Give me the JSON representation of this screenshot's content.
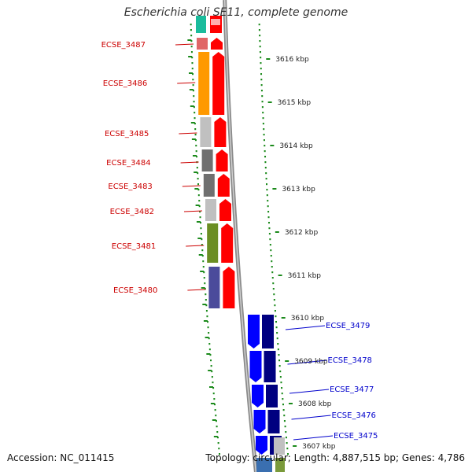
{
  "header": {
    "title": "Escherichia coli SE11, complete genome"
  },
  "footer": {
    "accession": "Accession: NC_011415",
    "summary": "Topology: circular; Length: 4,887,515 bp; Genes: 4,786"
  },
  "colors": {
    "forward_strand": "#ff0000",
    "reverse_strand": "#0000ff",
    "reverse_strand_dark": "#000080",
    "tick_green": "#1b8a1b",
    "backbone": "#8a8a8a"
  },
  "kbp_ticks": [
    "3616 kbp",
    "3615 kbp",
    "3614 kbp",
    "3613 kbp",
    "3612 kbp",
    "3611 kbp",
    "3610 kbp",
    "3609 kbp",
    "3608 kbp",
    "3607 kbp"
  ],
  "forward_genes": [
    {
      "label": "ECSE_3487",
      "cog_color": "#e06666",
      "strand_color": "#ff0000"
    },
    {
      "label": "ECSE_3486",
      "cog_color": "#ff9900",
      "strand_color": "#ff0000"
    },
    {
      "label": "ECSE_3485",
      "cog_color": "#c0c0c0",
      "strand_color": "#ff0000"
    },
    {
      "label": "ECSE_3484",
      "cog_color": "#707070",
      "strand_color": "#ff0000"
    },
    {
      "label": "ECSE_3483",
      "cog_color": "#707070",
      "strand_color": "#ff0000"
    },
    {
      "label": "ECSE_3482",
      "cog_color": "#c0c0c0",
      "strand_color": "#ff0000"
    },
    {
      "label": "ECSE_3481",
      "cog_color": "#6b8e23",
      "strand_color": "#ff0000"
    },
    {
      "label": "ECSE_3480",
      "cog_color": "#4b4b9b",
      "strand_color": "#ff0000"
    }
  ],
  "reverse_genes": [
    {
      "label": "ECSE_3479",
      "cog_color": "#000080",
      "strand_color": "#0000ff"
    },
    {
      "label": "ECSE_3478",
      "cog_color": "#000080",
      "strand_color": "#0000ff"
    },
    {
      "label": "ECSE_3477",
      "cog_color": "#000080",
      "strand_color": "#0000ff"
    },
    {
      "label": "ECSE_3476",
      "cog_color": "#000080",
      "strand_color": "#0000ff"
    },
    {
      "label": "ECSE_3475",
      "cog_color": "#000080",
      "strand_color": "#0000ff"
    }
  ]
}
